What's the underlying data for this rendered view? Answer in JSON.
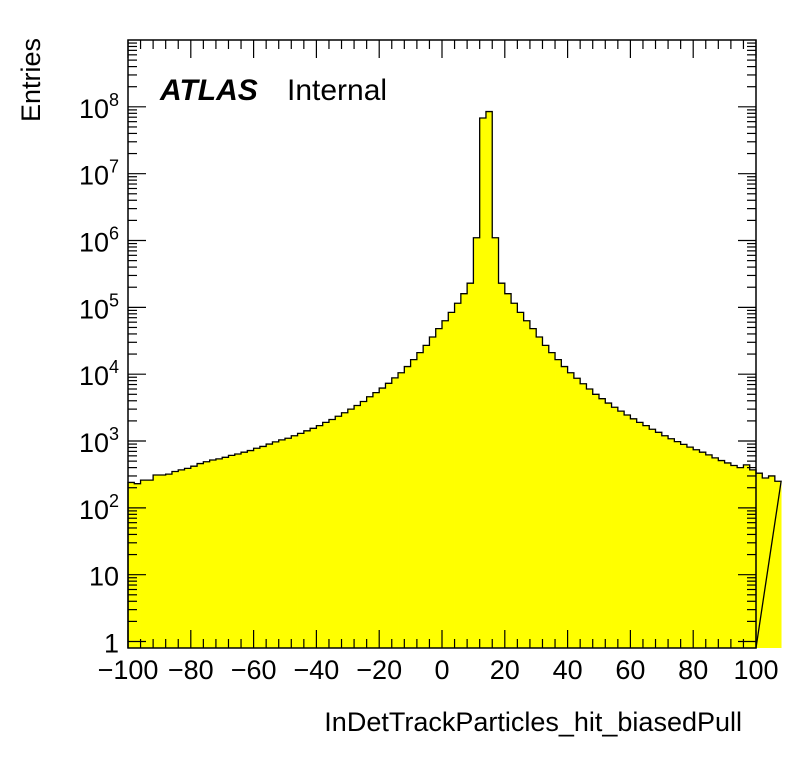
{
  "chart_data": {
    "type": "bar",
    "style": "histogram",
    "xlabel": "InDetTrackParticles_hit_biasedPull",
    "ylabel": "Entries",
    "xlim": [
      -100,
      100
    ],
    "ylim": [
      0.8,
      1000000000.0
    ],
    "yscale": "log",
    "grid": false,
    "fill_color": "#ffff00",
    "line_color": "#000000",
    "experiment_label": "ATLAS",
    "status_label": "Internal",
    "x_ticks": [
      "−100",
      "−80",
      "−60",
      "−40",
      "−20",
      "0",
      "20",
      "40",
      "60",
      "80",
      "100"
    ],
    "y_ticks": [
      {
        "value": 1,
        "base": "1",
        "exp": ""
      },
      {
        "value": 10,
        "base": "10",
        "exp": ""
      },
      {
        "value": 100,
        "base": "10",
        "exp": "2"
      },
      {
        "value": 1000,
        "base": "10",
        "exp": "3"
      },
      {
        "value": 10000,
        "base": "10",
        "exp": "4"
      },
      {
        "value": 100000,
        "base": "10",
        "exp": "5"
      },
      {
        "value": 1000000,
        "base": "10",
        "exp": "6"
      },
      {
        "value": 10000000,
        "base": "10",
        "exp": "7"
      },
      {
        "value": 100000000,
        "base": "10",
        "exp": "8"
      }
    ],
    "bin_width": 2,
    "bin_edges_start": -100,
    "values": [
      240,
      230,
      260,
      260,
      310,
      310,
      320,
      350,
      370,
      390,
      420,
      460,
      490,
      520,
      540,
      570,
      610,
      640,
      680,
      720,
      780,
      830,
      900,
      970,
      1040,
      1100,
      1200,
      1300,
      1420,
      1550,
      1700,
      1900,
      2100,
      2350,
      2650,
      3000,
      3400,
      3900,
      4600,
      5300,
      6200,
      7300,
      8800,
      10500,
      13000,
      16500,
      21000,
      27000,
      36000,
      48000,
      63000,
      84000,
      115000,
      160000,
      230000,
      1100000,
      68000000,
      85000000,
      1100000,
      230000,
      160000,
      115000,
      84000,
      63000,
      48000,
      36000,
      27000,
      21000,
      16500,
      13000,
      10500,
      8700,
      7200,
      6000,
      5000,
      4300,
      3700,
      3200,
      2800,
      2450,
      2150,
      1900,
      1700,
      1500,
      1350,
      1200,
      1080,
      980,
      890,
      810,
      740,
      680,
      620,
      560,
      510,
      470,
      430,
      400,
      440,
      370,
      330,
      280,
      300,
      250
    ]
  }
}
